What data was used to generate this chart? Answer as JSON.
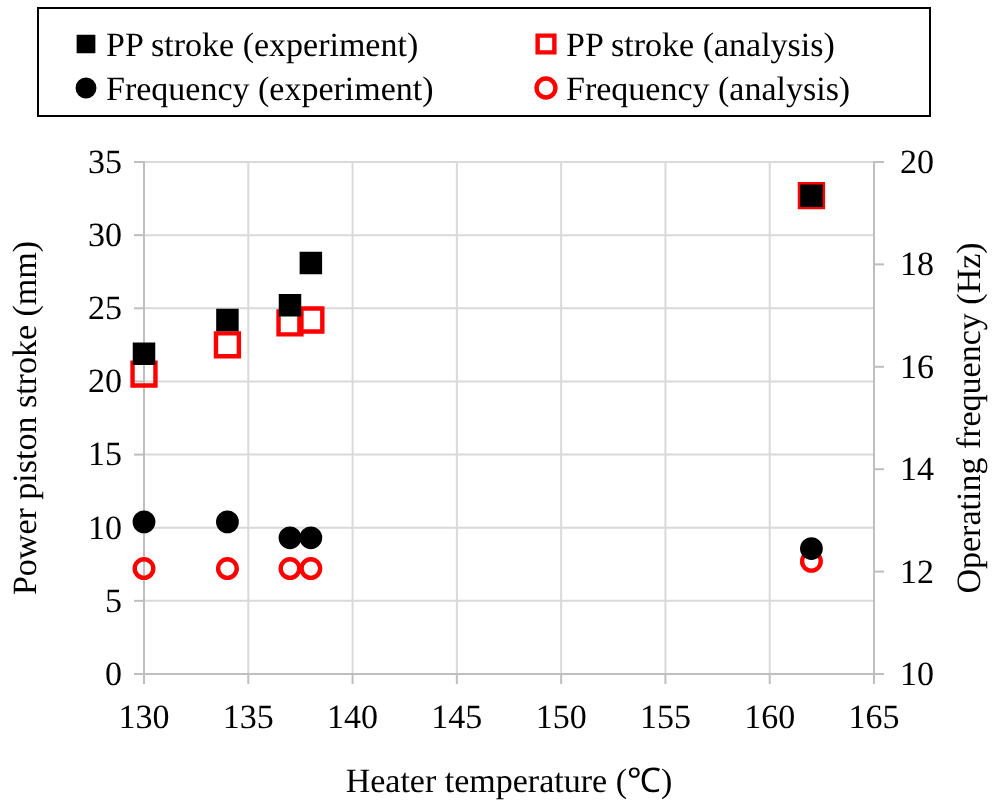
{
  "chart_data": {
    "type": "scatter",
    "xlabel": "Heater temperature (℃)",
    "ylabel": "Power piston stroke (mm)",
    "y2label": "Operating frequency (Hz)",
    "xlim": [
      130,
      165
    ],
    "xticks": [
      130,
      135,
      140,
      145,
      150,
      155,
      160,
      165
    ],
    "ylim": [
      0,
      35
    ],
    "yticks": [
      0,
      5,
      10,
      15,
      20,
      25,
      30,
      35
    ],
    "y2lim": [
      10,
      20
    ],
    "y2ticks": [
      10,
      12,
      14,
      16,
      18,
      20
    ],
    "grid": true,
    "legend": "top",
    "series": [
      {
        "name": "PP stroke (experiment)",
        "color": "#000000",
        "marker": "square",
        "x": [
          130,
          134,
          137,
          138,
          162
        ],
        "values": [
          21.9,
          24.2,
          25.2,
          28.1,
          32.7
        ]
      },
      {
        "name": "PP stroke (analysis)",
        "color": "#ff0000",
        "marker": "square",
        "x": [
          130,
          134,
          137,
          138,
          162
        ],
        "values": [
          20.5,
          22.5,
          24.0,
          24.2,
          32.7
        ]
      },
      {
        "name": "Frequency (experiment)",
        "color": "#000000",
        "marker": "circle",
        "axis": "y2",
        "x": [
          130,
          134,
          137,
          138,
          162
        ],
        "values": [
          12.97,
          12.97,
          12.66,
          12.66,
          12.45
        ]
      },
      {
        "name": "Frequency (analysis)",
        "color": "#ff0000",
        "marker": "circle",
        "axis": "y2",
        "x": [
          130,
          134,
          137,
          138,
          162
        ],
        "values": [
          12.06,
          12.06,
          12.06,
          12.06,
          12.2
        ]
      }
    ]
  }
}
